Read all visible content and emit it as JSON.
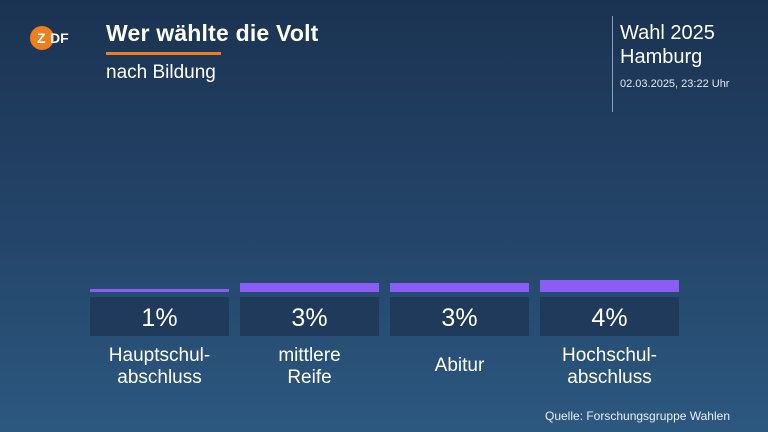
{
  "header": {
    "logo_text": "ZDF",
    "title": "Wer wählte die Volt",
    "subtitle": "nach Bildung",
    "election_line1": "Wahl 2025",
    "election_line2": "Hamburg",
    "datetime": "02.03.2025, 23:22 Uhr"
  },
  "colors": {
    "bar": "#8b5cf6",
    "label_box": "#1f3a5a",
    "accent": "#f07d1e"
  },
  "chart_data": {
    "type": "bar",
    "categories": [
      "Hauptschul-\nabschluss",
      "mittlere\nReife",
      "Abitur",
      "Hochschul-\nabschluss"
    ],
    "values": [
      1,
      3,
      3,
      4
    ],
    "value_labels": [
      "1%",
      "3%",
      "3%",
      "4%"
    ],
    "title": "Wer wählte die Volt",
    "subtitle": "nach Bildung",
    "unit": "%",
    "xlabel": "",
    "ylabel": "",
    "grid": false,
    "legend": "none"
  },
  "footer": {
    "source": "Quelle: Forschungsgruppe Wahlen"
  }
}
